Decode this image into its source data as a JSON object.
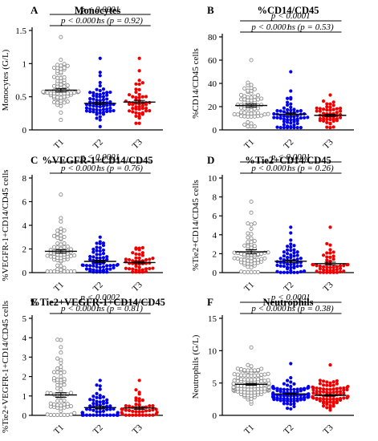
{
  "colors": {
    "T1": "#8c8c8c",
    "T2": "#0000ee",
    "T3": "#ee0000"
  },
  "chart_data": [
    {
      "panel": "A",
      "title": "Monocytes",
      "type": "scatter",
      "ylabel": "Monocytes (G/L)",
      "ylim": [
        0,
        1.5
      ],
      "yticks": [
        "0",
        "0.5",
        "1",
        "1.5"
      ],
      "categories": [
        "T1",
        "T2",
        "T3"
      ],
      "comparisons": [
        {
          "text": "p < 0.0001",
          "from": "T1",
          "to": "T3"
        },
        {
          "text": "p < 0.0001",
          "from": "T1",
          "to": "T2"
        },
        {
          "text": "ns (p = 0.92)",
          "from": "T2",
          "to": "T3"
        }
      ],
      "series": [
        {
          "category": "T1",
          "mean": 0.6,
          "sem": 0.025,
          "n": 70,
          "min": 0.15,
          "max": 1.4
        },
        {
          "category": "T2",
          "mean": 0.4,
          "sem": 0.02,
          "n": 65,
          "min": 0.05,
          "max": 1.08
        },
        {
          "category": "T3",
          "mean": 0.42,
          "sem": 0.025,
          "n": 50,
          "min": 0.1,
          "max": 1.08
        }
      ]
    },
    {
      "panel": "B",
      "title": "%CD14/CD45",
      "type": "scatter",
      "ylabel": "%CD14/CD45 cells",
      "ylim": [
        0,
        80
      ],
      "yticks": [
        "0",
        "20",
        "40",
        "60",
        "80"
      ],
      "categories": [
        "T1",
        "T2",
        "T3"
      ],
      "comparisons": [
        {
          "text": "p < 0.0001",
          "from": "T1",
          "to": "T3"
        },
        {
          "text": "p < 0.0001",
          "from": "T1",
          "to": "T2"
        },
        {
          "text": "ns (p = 0.53)",
          "from": "T2",
          "to": "T3"
        }
      ],
      "series": [
        {
          "category": "T1",
          "mean": 21,
          "sem": 1.3,
          "n": 65,
          "min": 3,
          "max": 60
        },
        {
          "category": "T2",
          "mean": 13.5,
          "sem": 1.0,
          "n": 60,
          "min": 2,
          "max": 50
        },
        {
          "category": "T3",
          "mean": 12.5,
          "sem": 0.9,
          "n": 48,
          "min": 2,
          "max": 30
        }
      ]
    },
    {
      "panel": "C",
      "title": "%VEGFR-1+CD14/CD45",
      "type": "scatter",
      "ylabel": "%VEGFR-1+CD14/CD45 cells",
      "ylim": [
        0,
        8
      ],
      "yticks": [
        "0",
        "2",
        "4",
        "6",
        "8"
      ],
      "categories": [
        "T1",
        "T2",
        "T3"
      ],
      "comparisons": [
        {
          "text": "p < 0.0001",
          "from": "T1",
          "to": "T3"
        },
        {
          "text": "p < 0.0001",
          "from": "T1",
          "to": "T2"
        },
        {
          "text": "ns (p = 0.76)",
          "from": "T2",
          "to": "T3"
        }
      ],
      "series": [
        {
          "category": "T1",
          "mean": 1.8,
          "sem": 0.15,
          "n": 65,
          "min": 0.1,
          "max": 6.6
        },
        {
          "category": "T2",
          "mean": 0.95,
          "sem": 0.1,
          "n": 60,
          "min": 0.05,
          "max": 3.0
        },
        {
          "category": "T3",
          "mean": 0.85,
          "sem": 0.1,
          "n": 45,
          "min": 0.05,
          "max": 2.1
        }
      ]
    },
    {
      "panel": "D",
      "title": "%Tie2+CD14/CD45",
      "type": "scatter",
      "ylabel": "%Tie2+CD14/CD45 cells",
      "ylim": [
        0,
        10
      ],
      "yticks": [
        "0",
        "2",
        "4",
        "6",
        "8",
        "10"
      ],
      "categories": [
        "T1",
        "T2",
        "T3"
      ],
      "comparisons": [
        {
          "text": "p < 0.0001",
          "from": "T1",
          "to": "T3"
        },
        {
          "text": "p < 0.0001",
          "from": "T1",
          "to": "T2"
        },
        {
          "text": "ns (p = 0.26)",
          "from": "T2",
          "to": "T3"
        }
      ],
      "series": [
        {
          "category": "T1",
          "mean": 2.2,
          "sem": 0.22,
          "n": 65,
          "min": 0.05,
          "max": 7.5
        },
        {
          "category": "T2",
          "mean": 1.2,
          "sem": 0.15,
          "n": 55,
          "min": 0.02,
          "max": 4.8
        },
        {
          "category": "T3",
          "mean": 0.95,
          "sem": 0.15,
          "n": 45,
          "min": 0.02,
          "max": 4.8
        }
      ]
    },
    {
      "panel": "E",
      "title": "%Tie2+VEGFR-1+CD14/CD45",
      "type": "scatter",
      "ylabel": "%Tie2+VEGFR-1+CD14/CD45 cells",
      "ylim": [
        0,
        5
      ],
      "yticks": [
        "0",
        "1",
        "2",
        "3",
        "4",
        "5"
      ],
      "categories": [
        "T1",
        "T2",
        "T3"
      ],
      "comparisons": [
        {
          "text": "p < 0.0002",
          "from": "T1",
          "to": "T3"
        },
        {
          "text": "p < 0.0001",
          "from": "T1",
          "to": "T2"
        },
        {
          "text": "ns (p = 0.81)",
          "from": "T2",
          "to": "T3"
        }
      ],
      "series": [
        {
          "category": "T1",
          "mean": 1.05,
          "sem": 0.12,
          "n": 65,
          "min": 0.02,
          "max": 3.9
        },
        {
          "category": "T2",
          "mean": 0.4,
          "sem": 0.07,
          "n": 55,
          "min": 0.01,
          "max": 1.8
        },
        {
          "category": "T3",
          "mean": 0.38,
          "sem": 0.07,
          "n": 45,
          "min": 0.01,
          "max": 1.8
        }
      ]
    },
    {
      "panel": "F",
      "title": "Neutrophils",
      "type": "scatter",
      "ylabel": "Neutrophils (G/L)",
      "ylim": [
        0,
        15
      ],
      "yticks": [
        "0",
        "5",
        "10",
        "15"
      ],
      "categories": [
        "T1",
        "T2",
        "T3"
      ],
      "comparisons": [
        {
          "text": "p < 0.0001",
          "from": "T1",
          "to": "T3"
        },
        {
          "text": "p < 0.0001",
          "from": "T1",
          "to": "T2"
        },
        {
          "text": "ns (p = 0.38)",
          "from": "T2",
          "to": "T3"
        }
      ],
      "series": [
        {
          "category": "T1",
          "mean": 4.8,
          "sem": 0.15,
          "n": 110,
          "min": 1.8,
          "max": 10.5
        },
        {
          "category": "T2",
          "mean": 3.3,
          "sem": 0.1,
          "n": 95,
          "min": 1.0,
          "max": 8.0
        },
        {
          "category": "T3",
          "mean": 3.1,
          "sem": 0.12,
          "n": 80,
          "min": 0.8,
          "max": 7.8
        }
      ]
    }
  ]
}
